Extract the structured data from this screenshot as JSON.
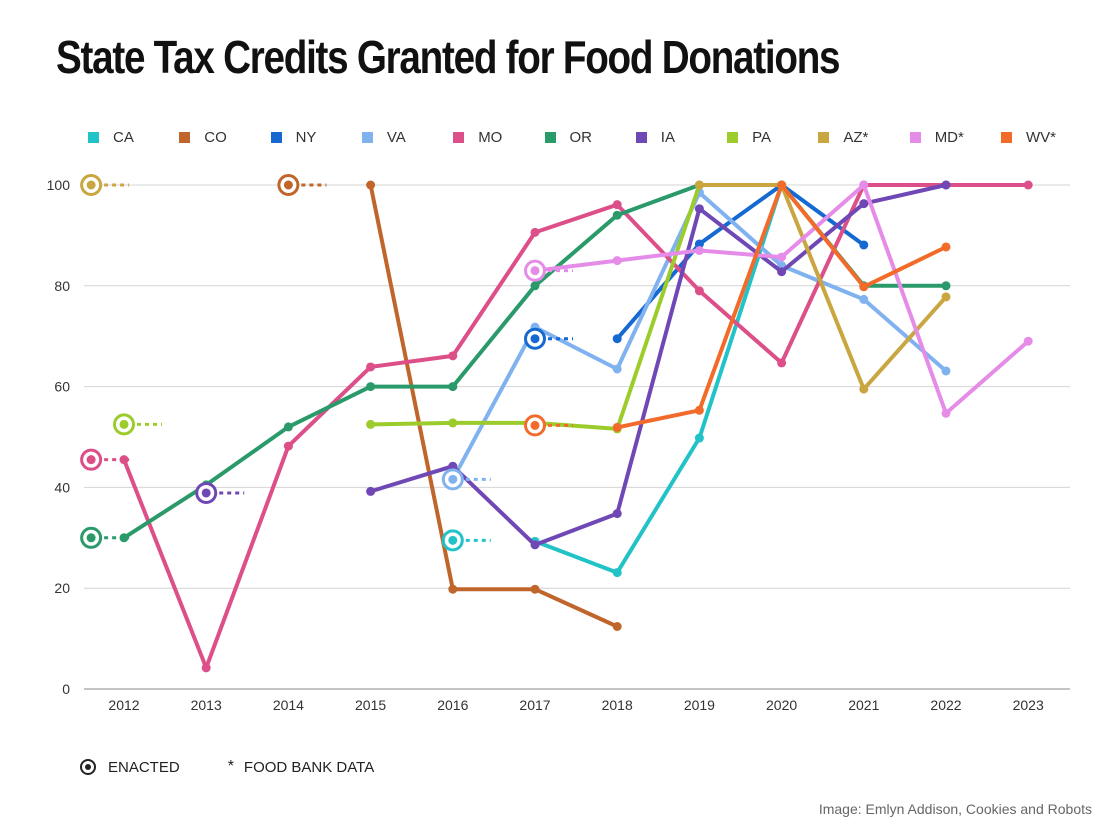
{
  "title": "State Tax Credits Granted for Food Donations",
  "footer": {
    "enacted_label": "ENACTED",
    "foodbank_symbol": "*",
    "foodbank_label": "FOOD BANK DATA"
  },
  "credit": "Image: Emlyn Addison, Cookies and Robots",
  "chart_data": {
    "type": "line",
    "title": "State Tax Credits Granted for Food Donations",
    "xlabel": "",
    "ylabel": "",
    "x": [
      2012,
      2013,
      2014,
      2015,
      2016,
      2017,
      2018,
      2019,
      2020,
      2021,
      2022,
      2023
    ],
    "ylim": [
      0,
      100
    ],
    "yticks": [
      0,
      20,
      40,
      60,
      80,
      100
    ],
    "grid": true,
    "legend_position": "top",
    "series": [
      {
        "name": "CA",
        "color": "#22c3c8",
        "points": [
          [
            2017,
            29.3
          ],
          [
            2018,
            23.1
          ],
          [
            2019,
            49.8
          ],
          [
            2020,
            100
          ]
        ],
        "enacted": {
          "year": 2016,
          "value": 29.5
        }
      },
      {
        "name": "CO",
        "color": "#c0652b",
        "points": [
          [
            2015,
            100
          ],
          [
            2016,
            19.8
          ],
          [
            2017,
            19.8
          ],
          [
            2018,
            12.4
          ]
        ],
        "enacted": {
          "year": 2014,
          "value": 100
        }
      },
      {
        "name": "NY",
        "color": "#1569d1",
        "points": [
          [
            2018,
            69.5
          ],
          [
            2019,
            88.3
          ],
          [
            2020,
            100
          ],
          [
            2021,
            88.1
          ]
        ],
        "enacted": {
          "year": 2017,
          "value": 69.5
        }
      },
      {
        "name": "VA",
        "color": "#80b2f0",
        "points": [
          [
            2016,
            41.6
          ],
          [
            2017,
            71.8
          ],
          [
            2018,
            63.5
          ],
          [
            2019,
            98.5
          ],
          [
            2020,
            84
          ],
          [
            2021,
            77.3
          ],
          [
            2022,
            63.1
          ]
        ],
        "enacted": {
          "year": 2016,
          "value": 41.6
        }
      },
      {
        "name": "MO",
        "color": "#dc4f88",
        "points": [
          [
            2012,
            45.5
          ],
          [
            2013,
            4.2
          ],
          [
            2014,
            48.2
          ],
          [
            2015,
            63.9
          ],
          [
            2016,
            66.1
          ],
          [
            2017,
            90.6
          ],
          [
            2018,
            96.1
          ],
          [
            2019,
            79
          ],
          [
            2020,
            64.7
          ],
          [
            2021,
            100
          ],
          [
            2022,
            100
          ],
          [
            2023,
            100
          ]
        ],
        "enacted": {
          "year": 2011.6,
          "value": 45.5
        }
      },
      {
        "name": "OR",
        "color": "#2a9a6a",
        "points": [
          [
            2012,
            30
          ],
          [
            2013,
            40.5
          ],
          [
            2014,
            52
          ],
          [
            2015,
            60
          ],
          [
            2016,
            60
          ],
          [
            2017,
            80
          ],
          [
            2018,
            94
          ],
          [
            2019,
            100
          ],
          [
            2020,
            100
          ],
          [
            2021,
            80
          ],
          [
            2022,
            80
          ]
        ],
        "enacted": {
          "year": 2011.6,
          "value": 30
        }
      },
      {
        "name": "IA",
        "color": "#7048b5",
        "points": [
          [
            2015,
            39.2
          ],
          [
            2016,
            44.2
          ],
          [
            2017,
            28.6
          ],
          [
            2018,
            34.8
          ],
          [
            2019,
            95.3
          ],
          [
            2020,
            82.8
          ],
          [
            2021,
            96.3
          ],
          [
            2022,
            100
          ]
        ],
        "enacted": {
          "year": 2013,
          "value": 38.9
        }
      },
      {
        "name": "PA",
        "color": "#9ccc2b",
        "points": [
          [
            2015,
            52.5
          ],
          [
            2016,
            52.8
          ],
          [
            2017,
            52.8
          ],
          [
            2018,
            51.6
          ],
          [
            2019,
            100
          ]
        ],
        "enacted": {
          "year": 2012,
          "value": 52.5
        }
      },
      {
        "name": "AZ*",
        "color": "#c9a640",
        "points": [
          [
            2019,
            100
          ],
          [
            2020,
            100
          ],
          [
            2021,
            59.5
          ],
          [
            2022,
            77.8
          ]
        ],
        "enacted": {
          "year": 2011.6,
          "value": 100
        }
      },
      {
        "name": "MD*",
        "color": "#e58ce8",
        "points": [
          [
            2017,
            83
          ],
          [
            2018,
            85
          ],
          [
            2019,
            87
          ],
          [
            2020,
            85.7
          ],
          [
            2021,
            100
          ],
          [
            2022,
            54.7
          ],
          [
            2023,
            69
          ]
        ],
        "enacted": {
          "year": 2017,
          "value": 83
        }
      },
      {
        "name": "WV*",
        "color": "#f26b2a",
        "points": [
          [
            2018,
            51.9
          ],
          [
            2019,
            55.3
          ],
          [
            2020,
            100
          ],
          [
            2021,
            79.8
          ],
          [
            2022,
            87.7
          ]
        ],
        "enacted": {
          "year": 2017,
          "value": 52.3
        }
      }
    ]
  }
}
